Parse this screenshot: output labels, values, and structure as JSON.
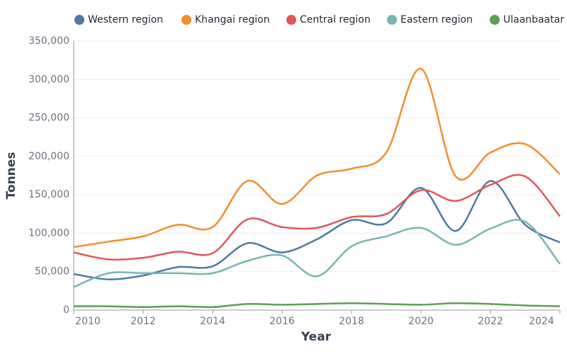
{
  "chart_data": {
    "type": "line",
    "x_label": "Year",
    "y_label": "Tonnes",
    "x": [
      2010,
      2011,
      2012,
      2013,
      2014,
      2015,
      2016,
      2017,
      2018,
      2019,
      2020,
      2021,
      2022,
      2023,
      2024
    ],
    "xlim": [
      2010,
      2024
    ],
    "xticks": [
      2010,
      2012,
      2014,
      2016,
      2018,
      2020,
      2022,
      2024
    ],
    "ylim": [
      0,
      350000
    ],
    "yticks": [
      0,
      {
        "value": 50000,
        "label": "50,000"
      },
      {
        "value": 100000,
        "label": "100,000"
      },
      {
        "value": 150000,
        "label": "150,000"
      },
      {
        "value": 200000,
        "label": "200,000"
      },
      {
        "value": 250000,
        "label": "250,000"
      },
      {
        "value": 300000,
        "label": "300,000"
      },
      {
        "value": 350000,
        "label": "350,000"
      }
    ],
    "grid": true,
    "legend": "top",
    "series": [
      {
        "name": "Western region",
        "color": "#4e79a7",
        "values": [
          47000,
          40000,
          45000,
          56000,
          57000,
          87000,
          75000,
          92000,
          117000,
          113000,
          159000,
          103000,
          168000,
          111000,
          88000
        ]
      },
      {
        "name": "Khangai region",
        "color": "#f28e2b",
        "values": [
          82000,
          89000,
          96000,
          111000,
          108000,
          168000,
          138000,
          175000,
          184000,
          205000,
          314000,
          174000,
          205000,
          216000,
          177000
        ]
      },
      {
        "name": "Central region",
        "color": "#e15759",
        "values": [
          75000,
          66000,
          68000,
          76000,
          74000,
          118000,
          108000,
          107000,
          121000,
          125000,
          156000,
          142000,
          163000,
          174000,
          122000
        ]
      },
      {
        "name": "Eastern region",
        "color": "#76b7b2",
        "values": [
          30000,
          48000,
          48000,
          48000,
          48000,
          64000,
          71000,
          44000,
          83000,
          96000,
          107000,
          85000,
          106000,
          115000,
          60000
        ]
      },
      {
        "name": "Ulaanbaatar",
        "color": "#59a14f",
        "values": [
          5000,
          5000,
          4000,
          5000,
          4000,
          8000,
          7000,
          8000,
          9000,
          8000,
          7000,
          9000,
          8000,
          6000,
          5000
        ]
      }
    ]
  }
}
